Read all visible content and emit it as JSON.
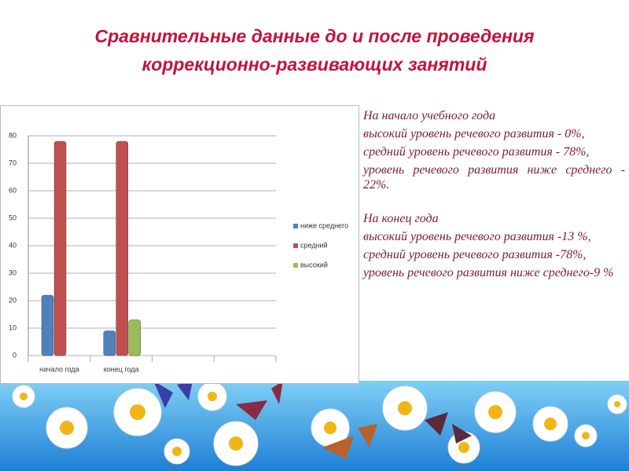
{
  "slide": {
    "title": [
      "Сравнительные данные до и после проведения",
      "коррекционно-развивающих занятий"
    ],
    "text": [
      "На начало учебного года",
      "высокий уровень речевого развития - 0%,",
      "средний уровень речевого развития - 78%,",
      "уровень речевого развития ниже среднего - 22%.",
      "На конец года",
      "высокий уровень речевого развития -13 %,",
      "средний уровень речевого развития -78%,",
      "уровень речевого развития ниже среднего-9 %"
    ]
  },
  "chart_data": {
    "type": "bar",
    "categories": [
      "начало года",
      "конец года",
      null,
      null
    ],
    "series": [
      {
        "name": "ниже среднего",
        "color": "#4f81bd",
        "values": [
          22,
          9,
          null,
          null
        ]
      },
      {
        "name": "средний",
        "color": "#c0504d",
        "values": [
          78,
          78,
          null,
          null
        ]
      },
      {
        "name": "высокий",
        "color": "#9bbb59",
        "values": [
          0,
          13,
          null,
          null
        ]
      }
    ],
    "ylim": [
      0,
      80
    ],
    "yticks": [
      0,
      10,
      20,
      30,
      40,
      50,
      60,
      70,
      80
    ],
    "grid": true,
    "legend": "right"
  }
}
